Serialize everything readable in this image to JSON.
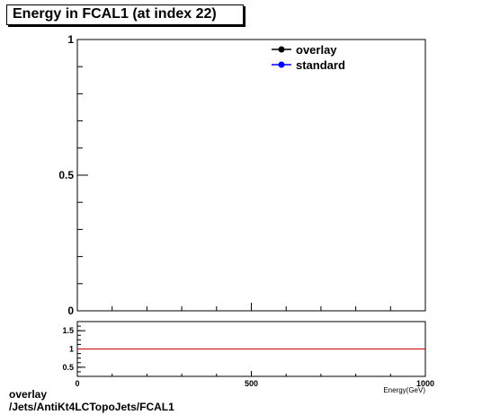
{
  "title": "Energy in FCAL1 (at index 22)",
  "footer": {
    "line1": "overlay",
    "line2": "/Jets/AntiKt4LCTopoJets/FCAL1"
  },
  "colors": {
    "overlay": "#000000",
    "standard": "#0000ff",
    "ratio_line": "#cc0000"
  },
  "chart_data": [
    {
      "type": "line",
      "panel": "main",
      "title": "Energy in FCAL1 (at index 22)",
      "xlim": [
        0,
        1000
      ],
      "ylim": [
        0,
        1
      ],
      "y_ticks": [
        {
          "value": 0,
          "label": "0"
        },
        {
          "value": 0.5,
          "label": "0.5"
        },
        {
          "value": 1,
          "label": "1"
        }
      ],
      "legend_position": "top-right",
      "series": [
        {
          "name": "overlay",
          "color": "#000000",
          "marker": "circle",
          "x": [],
          "y": []
        },
        {
          "name": "standard",
          "color": "#0000ff",
          "marker": "circle",
          "x": [],
          "y": []
        }
      ]
    },
    {
      "type": "line",
      "panel": "ratio",
      "xlim": [
        0,
        1000
      ],
      "ylim": [
        0.25,
        1.75
      ],
      "xlabel": "Energy(GeV)",
      "x_ticks": [
        {
          "value": 0,
          "label": "0"
        },
        {
          "value": 500,
          "label": "500"
        },
        {
          "value": 1000,
          "label": "1000"
        }
      ],
      "y_ticks": [
        {
          "value": 0.5,
          "label": "0.5"
        },
        {
          "value": 1,
          "label": "1"
        },
        {
          "value": 1.5,
          "label": "1.5"
        }
      ],
      "reference_line": 1
    }
  ]
}
